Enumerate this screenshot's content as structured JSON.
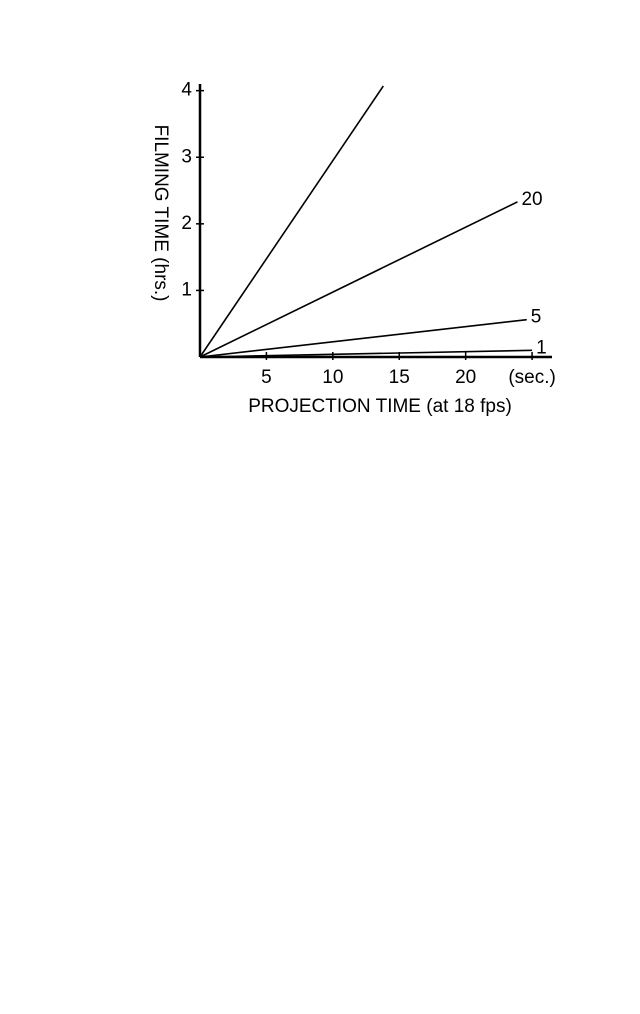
{
  "chart_data": {
    "type": "line",
    "xlabel": "PROJECTION TIME (at 18 fps)",
    "ylabel": "FILMING TIME (hrs.)",
    "xlim": [
      0,
      26.5
    ],
    "ylim": [
      0,
      4.1
    ],
    "xticks": [
      5,
      10,
      15,
      20,
      {
        "value": 25,
        "label": "(sec.)"
      }
    ],
    "yticks": [
      1,
      2,
      3,
      4
    ],
    "series": [
      {
        "color": "#000000",
        "x": [
          0,
          13.8
        ],
        "values": [
          0,
          4.07
        ]
      },
      {
        "name": "20",
        "color": "#000000",
        "x": [
          0,
          23.9
        ],
        "values": [
          0,
          2.33
        ]
      },
      {
        "name": "5",
        "color": "#000000",
        "x": [
          0,
          24.6
        ],
        "values": [
          0,
          0.56
        ]
      },
      {
        "name": "1",
        "color": "#000000",
        "x": [
          0,
          25
        ],
        "values": [
          0,
          0.1
        ]
      }
    ]
  }
}
